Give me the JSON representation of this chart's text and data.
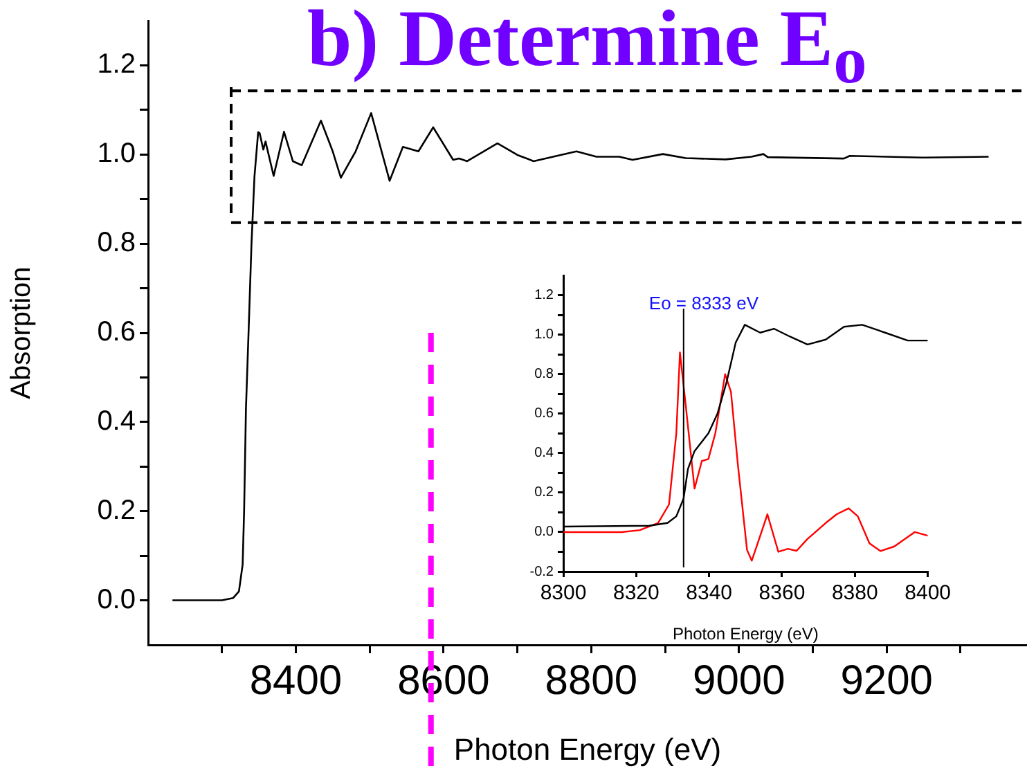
{
  "chart_data": [
    {
      "type": "line",
      "title": "b) Determine E$_{o}$",
      "xlabel": "Photon Energy (eV)",
      "ylabel": "Absorption",
      "marker": "none",
      "xlim": [
        8200,
        9390
      ],
      "ylim": [
        -0.1,
        1.3
      ],
      "xticks": [
        {
          "value": 8300,
          "label": null
        },
        8400,
        {
          "value": 8500,
          "label": null
        },
        8600,
        {
          "value": 8700,
          "label": null
        },
        8800,
        {
          "value": 8900,
          "label": null
        },
        9000,
        {
          "value": 9100,
          "label": null
        },
        9200,
        {
          "value": 9300,
          "label": null
        }
      ],
      "yticks": [
        {
          "value": 0,
          "label": "0.0"
        },
        {
          "value": 0.1,
          "label": null
        },
        0.2,
        {
          "value": 0.3,
          "label": null
        },
        0.4,
        {
          "value": 0.5,
          "label": null
        },
        0.6,
        {
          "value": 0.7,
          "label": null
        },
        0.8,
        {
          "value": 0.9,
          "label": null
        },
        {
          "value": 1,
          "label": "1.0"
        },
        {
          "value": 1.1,
          "label": null
        },
        1.2
      ],
      "x": [
        8233,
        8300,
        8315,
        8323,
        8328,
        8330,
        8332.5,
        8336,
        8340,
        8344,
        8349,
        8351,
        8356,
        8359,
        8370,
        8384,
        8396,
        8408,
        8434,
        8450,
        8461,
        8481,
        8502,
        8527,
        8545,
        8566,
        8586,
        8613,
        8621,
        8632,
        8673,
        8700,
        8722,
        8780,
        8807,
        8838,
        8856,
        8897,
        8928,
        8982,
        9017,
        9033,
        9039,
        9142,
        9150,
        9249,
        9338
      ],
      "series": [
        {
          "color": "#000000",
          "values": [
            0.0,
            0.0,
            0.005,
            0.02,
            0.08,
            0.2,
            0.43,
            0.6,
            0.8,
            0.95,
            1.05,
            1.048,
            1.011,
            1.029,
            0.952,
            1.051,
            0.985,
            0.976,
            1.076,
            1.007,
            0.948,
            1.007,
            1.093,
            0.941,
            1.017,
            1.007,
            1.061,
            0.988,
            0.991,
            0.985,
            1.025,
            0.999,
            0.985,
            1.007,
            0.995,
            0.995,
            0.988,
            1.001,
            0.992,
            0.989,
            0.995,
            1.001,
            0.994,
            0.991,
            0.997,
            0.993,
            0.995
          ]
        }
      ],
      "ref_lines": [
        {
          "axis": "x",
          "value": 8583,
          "color": "#ff00ff",
          "line_style": "dashed"
        },
        {
          "axis": "y",
          "value": 1.143,
          "color": "#000000",
          "line_style": "dashed"
        },
        {
          "axis": "y",
          "value": 0.847,
          "color": "#000000",
          "line_style": "dashed"
        }
      ]
    },
    {
      "type": "line",
      "xlabel": "Photon Energy (eV)",
      "marker": "none",
      "xlim": [
        8300,
        8400
      ],
      "ylim": [
        -0.2,
        1.3
      ],
      "xticks": [
        8300,
        8320,
        8340,
        8360,
        8380,
        8400
      ],
      "yticks": [
        -0.2,
        {
          "value": -0.1,
          "label": null
        },
        {
          "value": 0,
          "label": "0.0"
        },
        {
          "value": 0.1,
          "label": null
        },
        0.2,
        {
          "value": 0.3,
          "label": null
        },
        0.4,
        {
          "value": 0.5,
          "label": null
        },
        0.6,
        {
          "value": 0.7,
          "label": null
        },
        0.8,
        {
          "value": 0.9,
          "label": null
        },
        {
          "value": 1,
          "label": "1.0"
        },
        {
          "value": 1.1,
          "label": null
        },
        1.2
      ],
      "series": [
        {
          "color": "#000000",
          "x": [
            8300,
            8323.6,
            8328.6,
            8331,
            8333,
            8334.2,
            8336,
            8339.8,
            8342.3,
            8344.8,
            8347.3,
            8349.8,
            8354,
            8357.8,
            8362.2,
            8367,
            8372,
            8377,
            8382,
            8388.3,
            8394.5,
            8400
          ],
          "values": [
            0.028,
            0.032,
            0.046,
            0.08,
            0.17,
            0.32,
            0.41,
            0.5,
            0.6,
            0.76,
            0.96,
            1.05,
            1.01,
            1.03,
            0.99,
            0.95,
            0.975,
            1.04,
            1.05,
            1.01,
            0.97,
            0.97
          ]
        },
        {
          "color": "#ff0000",
          "x": [
            8300,
            8316,
            8321,
            8326,
            8329,
            8331,
            8332,
            8333.6,
            8336,
            8338,
            8339.8,
            8341.7,
            8344.4,
            8346,
            8347.9,
            8350.4,
            8351.7,
            8354,
            8356,
            8359,
            8361.6,
            8364,
            8367,
            8372,
            8375,
            8378.3,
            8380.8,
            8384,
            8387,
            8390.8,
            8396.4,
            8400
          ],
          "values": [
            0.0,
            0.0,
            0.01,
            0.046,
            0.14,
            0.5,
            0.91,
            0.64,
            0.22,
            0.36,
            0.37,
            0.5,
            0.8,
            0.71,
            0.34,
            -0.09,
            -0.145,
            -0.02,
            0.09,
            -0.1,
            -0.085,
            -0.095,
            -0.035,
            0.046,
            0.09,
            0.12,
            0.08,
            -0.057,
            -0.096,
            -0.073,
            0.0,
            -0.018
          ]
        }
      ],
      "ref_lines": [
        {
          "axis": "x",
          "value": 8333,
          "color": "#000000"
        }
      ],
      "annotations": [
        {
          "text": "Eo = 8333 eV",
          "x": 8333,
          "y": 1.15
        }
      ]
    }
  ]
}
